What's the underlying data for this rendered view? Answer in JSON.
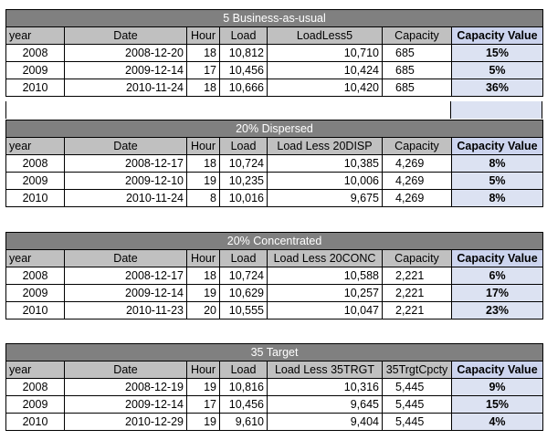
{
  "tables": [
    {
      "title": "5 Business-as-usual",
      "headers": [
        "year",
        "Date",
        "Hour",
        "Load",
        "LoadLess5",
        "Capacity",
        "Capacity Value"
      ],
      "rows": [
        [
          "2008",
          "2008-12-20",
          "18",
          "10,812",
          "10,710",
          "685",
          "15%"
        ],
        [
          "2009",
          "2009-12-14",
          "17",
          "10,456",
          "10,424",
          "685",
          "5%"
        ],
        [
          "2010",
          "2010-11-24",
          "18",
          "10,666",
          "10,420",
          "685",
          "36%"
        ]
      ]
    },
    {
      "title": "20% Dispersed",
      "headers": [
        "year",
        "Date",
        "Hour",
        "Load",
        "Load Less 20DISP",
        "Capacity",
        "Capacity Value"
      ],
      "rows": [
        [
          "2008",
          "2008-12-17",
          "18",
          "10,724",
          "10,385",
          "4,269",
          "8%"
        ],
        [
          "2009",
          "2009-12-10",
          "19",
          "10,235",
          "10,006",
          "4,269",
          "5%"
        ],
        [
          "2010",
          "2010-11-24",
          "8",
          "10,016",
          "9,675",
          "4,269",
          "8%"
        ]
      ]
    },
    {
      "title": "20% Concentrated",
      "headers": [
        "year",
        "Date",
        "Hour",
        "Load",
        "Load Less 20CONC",
        "Capacity",
        "Capacity Value"
      ],
      "rows": [
        [
          "2008",
          "2008-12-17",
          "18",
          "10,724",
          "10,588",
          "2,221",
          "6%"
        ],
        [
          "2009",
          "2009-12-14",
          "19",
          "10,629",
          "10,257",
          "2,221",
          "17%"
        ],
        [
          "2010",
          "2010-11-23",
          "20",
          "10,555",
          "10,047",
          "2,221",
          "23%"
        ]
      ]
    },
    {
      "title": "35 Target",
      "headers": [
        "year",
        "Date",
        "Hour",
        "Load",
        "Load Less 35TRGT",
        "35TrgtCpcty",
        "Capacity Value"
      ],
      "rows": [
        [
          "2008",
          "2008-12-19",
          "19",
          "10,816",
          "10,316",
          "5,445",
          "9%"
        ],
        [
          "2009",
          "2009-12-14",
          "17",
          "10,456",
          "9,645",
          "5,445",
          "15%"
        ],
        [
          "2010",
          "2010-12-29",
          "19",
          "9,610",
          "9,404",
          "5,445",
          "4%"
        ]
      ]
    }
  ]
}
